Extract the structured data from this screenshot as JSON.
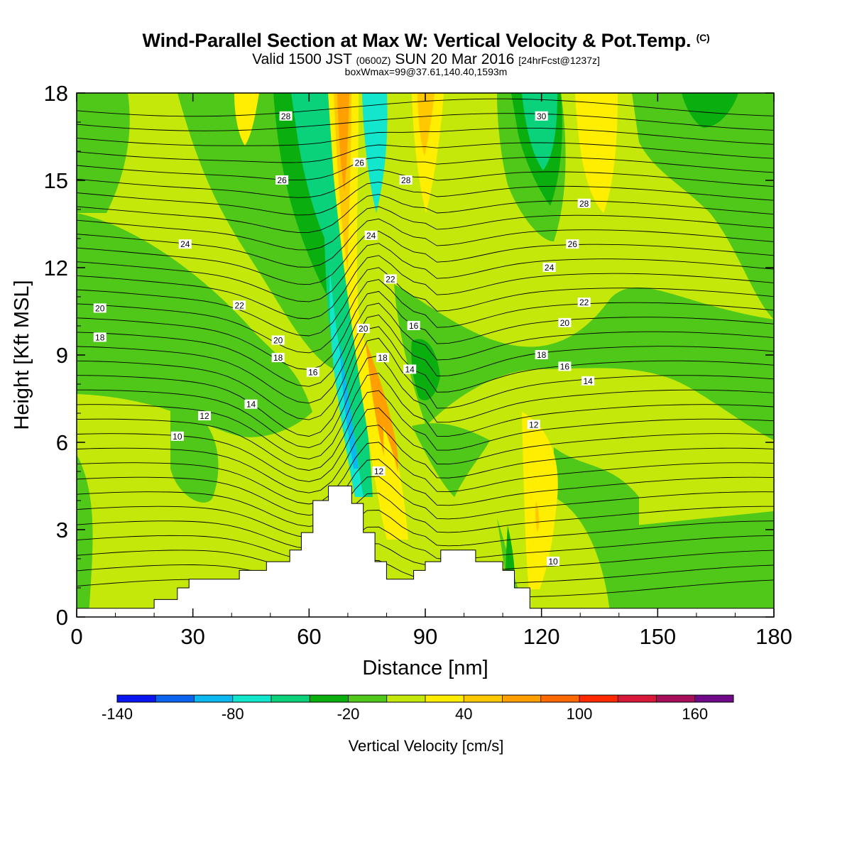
{
  "title": {
    "line1": "Wind-Parallel Section at Max W: Vertical Velocity & Pot.Temp.",
    "copyright": "(C)",
    "line2_a": "Valid 1500 JST",
    "line2_b": "(0600Z)",
    "line2_c": "SUN 20 Mar 2016",
    "line2_d": "[24hrFcst@1237z]",
    "line3": "boxWmax=99@37.61,140.40,1593m"
  },
  "chart_data": {
    "type": "heatmap",
    "xlabel": "Distance [nm]",
    "ylabel": "Height [Kft MSL]",
    "xlim": [
      0,
      180
    ],
    "ylim": [
      0,
      18
    ],
    "x_ticks": [
      0,
      30,
      60,
      90,
      120,
      150,
      180
    ],
    "y_ticks": [
      0,
      3,
      6,
      9,
      12,
      15,
      18
    ],
    "colorbar": {
      "label": "Vertical Velocity [cm/s]",
      "tick_labels": [
        -140,
        -80,
        -20,
        40,
        100,
        160
      ],
      "bins": [
        {
          "from": -140,
          "to": -120,
          "color": "#0a16f2"
        },
        {
          "from": -120,
          "to": -100,
          "color": "#0a64ee"
        },
        {
          "from": -100,
          "to": -80,
          "color": "#0cb8f0"
        },
        {
          "from": -80,
          "to": -60,
          "color": "#12e6cc"
        },
        {
          "from": -60,
          "to": -40,
          "color": "#0ad27a"
        },
        {
          "from": -40,
          "to": -20,
          "color": "#0aae0e"
        },
        {
          "from": -20,
          "to": 0,
          "color": "#50c81a"
        },
        {
          "from": 0,
          "to": 20,
          "color": "#c4e80a"
        },
        {
          "from": 20,
          "to": 40,
          "color": "#ffee00"
        },
        {
          "from": 40,
          "to": 60,
          "color": "#ffc800"
        },
        {
          "from": 60,
          "to": 80,
          "color": "#ffa000"
        },
        {
          "from": 80,
          "to": 100,
          "color": "#ff6a00"
        },
        {
          "from": 100,
          "to": 120,
          "color": "#ff2a00"
        },
        {
          "from": 120,
          "to": 140,
          "color": "#d81838"
        },
        {
          "from": 140,
          "to": 160,
          "color": "#a80e5a"
        },
        {
          "from": 160,
          "to": 180,
          "color": "#700a8a"
        }
      ]
    },
    "terrain_top": [
      [
        0,
        0.3
      ],
      [
        20,
        0.3
      ],
      [
        20,
        0.6
      ],
      [
        26,
        0.6
      ],
      [
        26,
        1.0
      ],
      [
        29,
        1.0
      ],
      [
        29,
        1.3
      ],
      [
        42,
        1.3
      ],
      [
        42,
        1.6
      ],
      [
        49,
        1.6
      ],
      [
        49,
        1.9
      ],
      [
        55,
        1.9
      ],
      [
        55,
        2.3
      ],
      [
        58,
        2.3
      ],
      [
        58,
        2.9
      ],
      [
        61,
        2.9
      ],
      [
        61,
        4.0
      ],
      [
        65,
        4.0
      ],
      [
        65,
        4.5
      ],
      [
        71,
        4.5
      ],
      [
        71,
        3.9
      ],
      [
        74,
        3.9
      ],
      [
        74,
        2.9
      ],
      [
        77,
        2.9
      ],
      [
        77,
        1.9
      ],
      [
        80,
        1.9
      ],
      [
        80,
        1.3
      ],
      [
        87,
        1.3
      ],
      [
        87,
        1.6
      ],
      [
        90,
        1.6
      ],
      [
        90,
        1.9
      ],
      [
        94,
        1.9
      ],
      [
        94,
        2.3
      ],
      [
        103,
        2.3
      ],
      [
        103,
        1.9
      ],
      [
        110,
        1.9
      ],
      [
        110,
        1.6
      ],
      [
        113,
        1.6
      ],
      [
        113,
        1.0
      ],
      [
        117,
        1.0
      ],
      [
        117,
        0.3
      ],
      [
        180,
        0.3
      ]
    ],
    "theta_contour_labels": [
      {
        "value": "10",
        "x": 26,
        "y": 6.2
      },
      {
        "value": "12",
        "x": 33,
        "y": 6.9
      },
      {
        "value": "14",
        "x": 45,
        "y": 7.3
      },
      {
        "value": "16",
        "x": 61,
        "y": 8.4
      },
      {
        "value": "18",
        "x": 52,
        "y": 8.9
      },
      {
        "value": "20",
        "x": 52,
        "y": 9.5
      },
      {
        "value": "22",
        "x": 42,
        "y": 10.7
      },
      {
        "value": "24",
        "x": 28,
        "y": 12.8
      },
      {
        "value": "26",
        "x": 53,
        "y": 15.0
      },
      {
        "value": "28",
        "x": 54,
        "y": 17.2
      },
      {
        "value": "20",
        "x": 6,
        "y": 10.6
      },
      {
        "value": "18",
        "x": 6,
        "y": 9.6
      },
      {
        "value": "26",
        "x": 73,
        "y": 15.6
      },
      {
        "value": "24",
        "x": 76,
        "y": 13.1
      },
      {
        "value": "22",
        "x": 81,
        "y": 11.6
      },
      {
        "value": "20",
        "x": 74,
        "y": 9.9
      },
      {
        "value": "18",
        "x": 79,
        "y": 8.9
      },
      {
        "value": "14",
        "x": 86,
        "y": 8.5
      },
      {
        "value": "16",
        "x": 87,
        "y": 10.0
      },
      {
        "value": "12",
        "x": 78,
        "y": 5.0
      },
      {
        "value": "28",
        "x": 85,
        "y": 15.0
      },
      {
        "value": "30",
        "x": 120,
        "y": 17.2
      },
      {
        "value": "28",
        "x": 131,
        "y": 14.2
      },
      {
        "value": "26",
        "x": 128,
        "y": 12.8
      },
      {
        "value": "24",
        "x": 122,
        "y": 12.0
      },
      {
        "value": "22",
        "x": 131,
        "y": 10.8
      },
      {
        "value": "20",
        "x": 126,
        "y": 10.1
      },
      {
        "value": "18",
        "x": 120,
        "y": 9.0
      },
      {
        "value": "16",
        "x": 126,
        "y": 8.6
      },
      {
        "value": "14",
        "x": 132,
        "y": 8.1
      },
      {
        "value": "12",
        "x": 118,
        "y": 6.6
      },
      {
        "value": "10",
        "x": 123,
        "y": 1.9
      }
    ]
  }
}
